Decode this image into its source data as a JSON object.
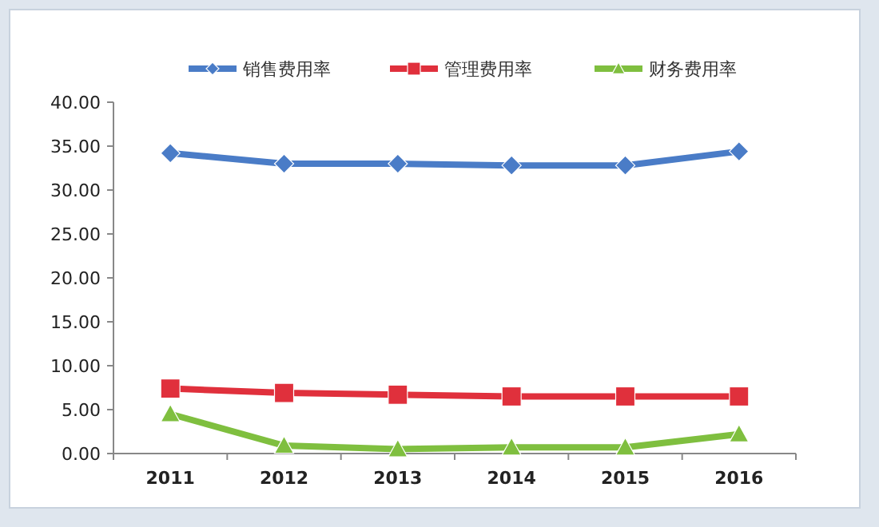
{
  "chart_data": {
    "type": "line",
    "categories": [
      "2011",
      "2012",
      "2013",
      "2014",
      "2015",
      "2016"
    ],
    "series": [
      {
        "name": "销售费用率",
        "color": "#4a7cc7",
        "marker": "diamond",
        "values": [
          34.2,
          33.0,
          33.0,
          32.8,
          32.8,
          34.4
        ]
      },
      {
        "name": "管理费用率",
        "color": "#e0303c",
        "marker": "square",
        "values": [
          7.4,
          6.9,
          6.7,
          6.5,
          6.5,
          6.5
        ]
      },
      {
        "name": "财务费用率",
        "color": "#7fbf3f",
        "marker": "triangle",
        "values": [
          4.5,
          0.9,
          0.5,
          0.7,
          0.7,
          2.2
        ]
      }
    ],
    "ylim": [
      0,
      40
    ],
    "yticks": [
      {
        "value": 0,
        "label": "0.00"
      },
      {
        "value": 5,
        "label": "5.00"
      },
      {
        "value": 10,
        "label": "10.00"
      },
      {
        "value": 15,
        "label": "15.00"
      },
      {
        "value": 20,
        "label": "20.00"
      },
      {
        "value": 25,
        "label": "25.00"
      },
      {
        "value": 30,
        "label": "30.00"
      },
      {
        "value": 35,
        "label": "35.00"
      },
      {
        "value": 40,
        "label": "40.00"
      }
    ],
    "legend": "top",
    "grid": false,
    "line_style": "solid"
  }
}
